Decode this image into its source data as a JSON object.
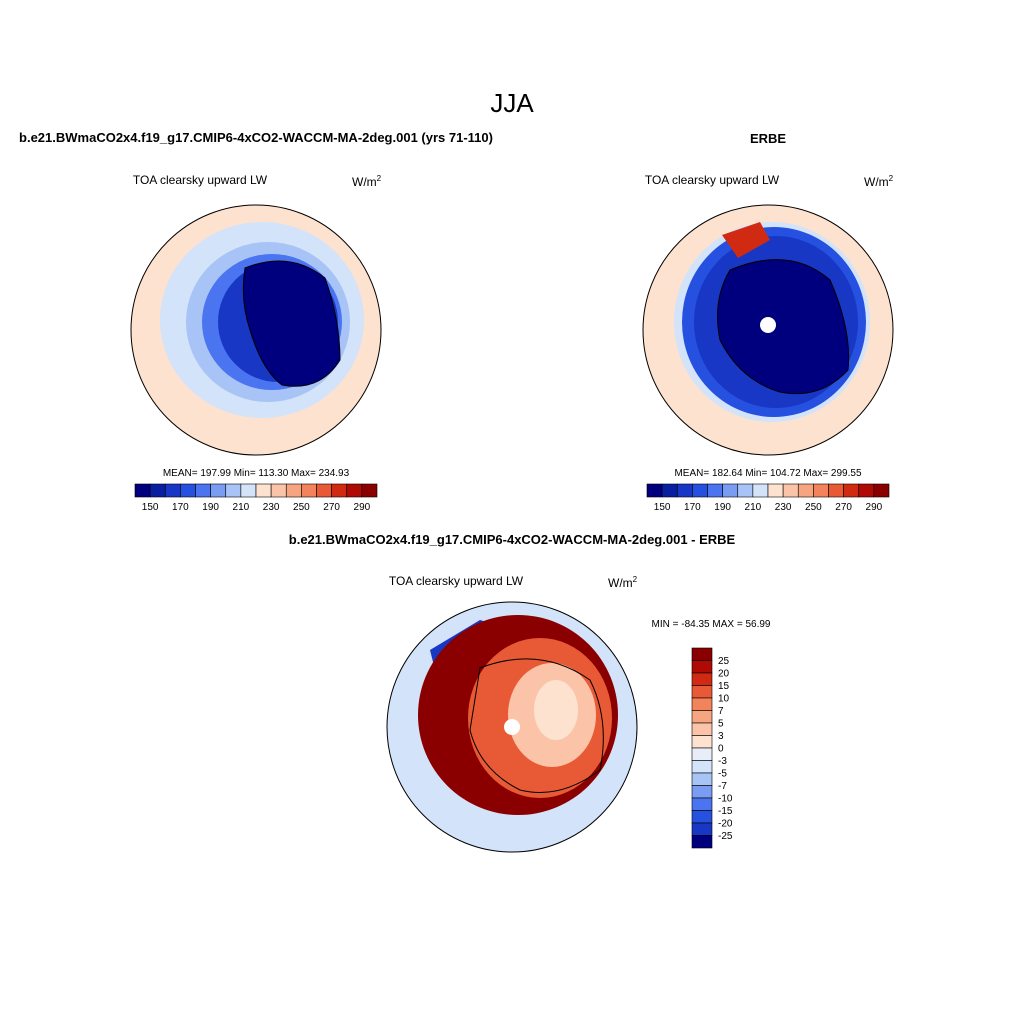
{
  "title": "JJA",
  "panels": [
    {
      "title": "b.e21.BWmaCO2x4.f19_g17.CMIP6-4xCO2-WACCM-MA-2deg.001 (yrs 71-110)",
      "subtitle": "TOA clearsky upward LW",
      "units": {
        "base": "W/m",
        "sup": "2"
      },
      "stats": "MEAN= 197.99  Min= 113.30  Max= 234.93",
      "colorbar": {
        "labels": [
          "150",
          "170",
          "190",
          "210",
          "230",
          "250",
          "270",
          "290"
        ],
        "colors": [
          "#00007f",
          "#0a1fa0",
          "#1737c4",
          "#2550e0",
          "#4a74f0",
          "#7a9cf2",
          "#a8c3f5",
          "#d3e3fa",
          "#fde2d0",
          "#fbc4a8",
          "#f7a580",
          "#f3835a",
          "#e85a35",
          "#d12a12",
          "#b00a05",
          "#8a0000"
        ]
      }
    },
    {
      "title": "ERBE",
      "subtitle": "TOA clearsky upward LW",
      "units": {
        "base": "W/m",
        "sup": "2"
      },
      "stats": "MEAN= 182.64  Min= 104.72  Max= 299.55",
      "colorbar": {
        "labels": [
          "150",
          "170",
          "190",
          "210",
          "230",
          "250",
          "270",
          "290"
        ],
        "colors": [
          "#00007f",
          "#0a1fa0",
          "#1737c4",
          "#2550e0",
          "#4a74f0",
          "#7a9cf2",
          "#a8c3f5",
          "#d3e3fa",
          "#fde2d0",
          "#fbc4a8",
          "#f7a580",
          "#f3835a",
          "#e85a35",
          "#d12a12",
          "#b00a05",
          "#8a0000"
        ]
      }
    },
    {
      "title": "b.e21.BWmaCO2x4.f19_g17.CMIP6-4xCO2-WACCM-MA-2deg.001 - ERBE",
      "subtitle": "TOA clearsky upward LW",
      "units": {
        "base": "W/m",
        "sup": "2"
      },
      "stats": "MIN = -84.35 MAX =  56.99",
      "colorbar": {
        "labels": [
          "25",
          "20",
          "15",
          "10",
          "7",
          "5",
          "3",
          "0",
          "-3",
          "-5",
          "-7",
          "-10",
          "-15",
          "-20",
          "-25"
        ],
        "colors": [
          "#8a0000",
          "#b00a05",
          "#d12a12",
          "#e85a35",
          "#f3835a",
          "#f7a580",
          "#fbc4a8",
          "#fde2d0",
          "#e8eef8",
          "#d3e3fa",
          "#a8c3f5",
          "#7a9cf2",
          "#4a74f0",
          "#2550e0",
          "#1737c4",
          "#00007f"
        ]
      }
    }
  ]
}
